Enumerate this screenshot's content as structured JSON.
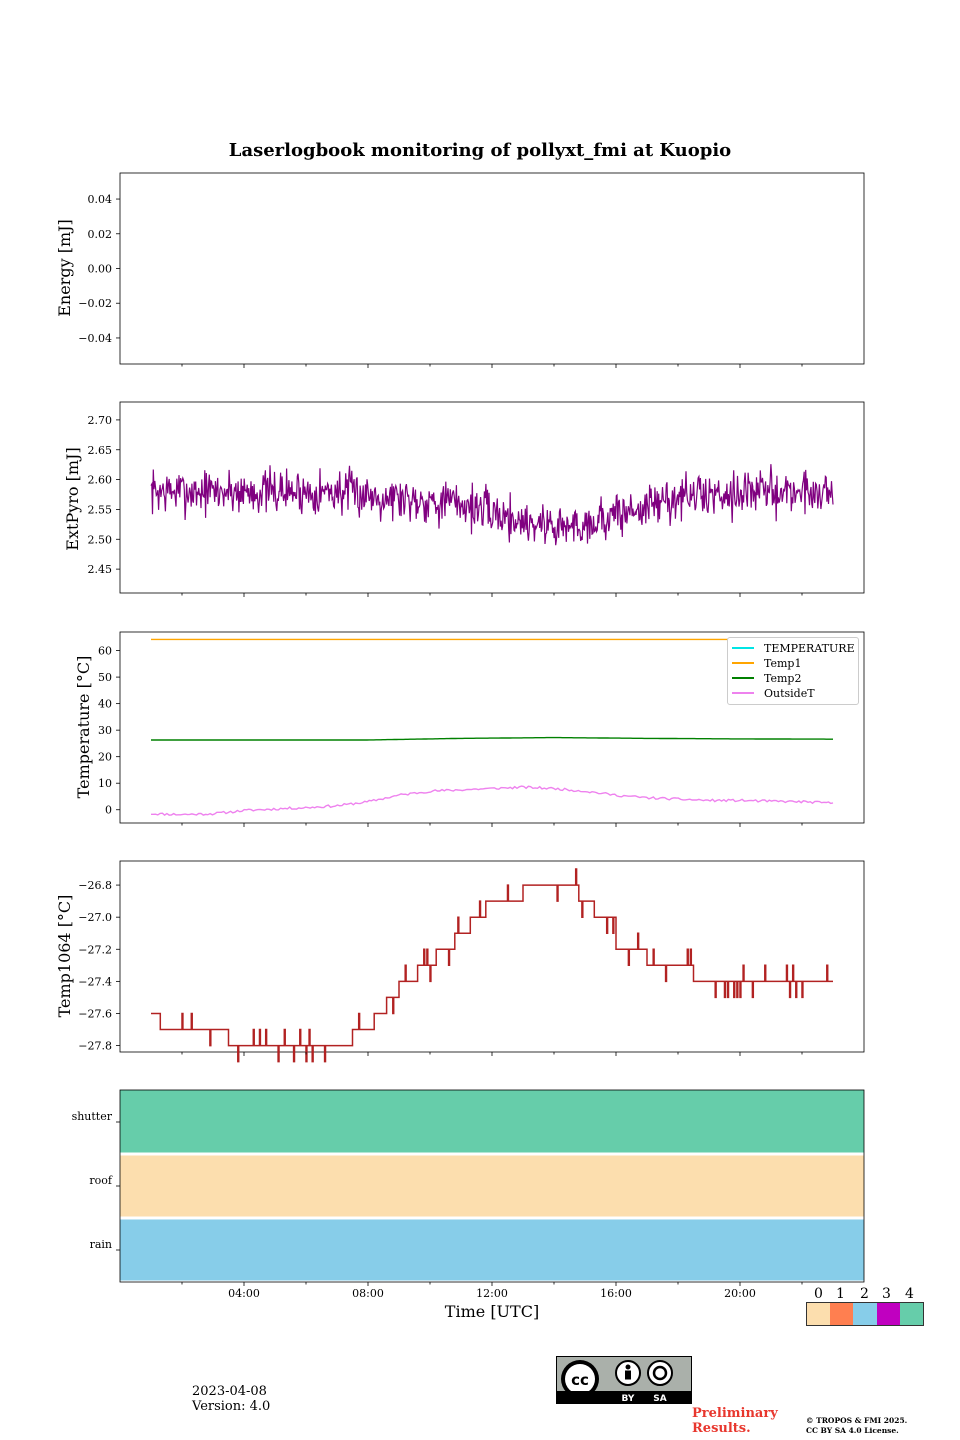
{
  "page": {
    "title": "Laserlogbook monitoring of pollyxt_fmi at Kuopio",
    "date": "2023-04-08",
    "version": "Version: 4.0",
    "preliminary_line1": "Preliminary",
    "preliminary_line2": "Results.",
    "copyright_line1": "© TROPOS & FMI 2025.",
    "copyright_line2": "CC BY SA 4.0 License.",
    "cc_by": "BY",
    "cc_sa": "SA",
    "cc_logo": "cc"
  },
  "chart_data": [
    {
      "type": "line",
      "name": "energy",
      "ylabel": "Energy [mJ]",
      "ylim": [
        -0.055,
        0.055
      ],
      "yticks": [
        -0.04,
        -0.02,
        0.0,
        0.02,
        0.04
      ],
      "ytick_labels": [
        "−0.04",
        "−0.02",
        "0.00",
        "0.02",
        "0.04"
      ],
      "series": []
    },
    {
      "type": "line",
      "name": "extpyro",
      "ylabel": "ExtPyro [mJ]",
      "ylim": [
        2.41,
        2.73
      ],
      "yticks": [
        2.45,
        2.5,
        2.55,
        2.6,
        2.65,
        2.7
      ],
      "ytick_labels": [
        "2.45",
        "2.50",
        "2.55",
        "2.60",
        "2.65",
        "2.70"
      ],
      "color": "#800080",
      "series": [
        {
          "name": "ExtPyro",
          "noise_amp": 0.04,
          "x": [
            1.0,
            3.0,
            5.0,
            7.0,
            9.0,
            11.0,
            13.0,
            14.5,
            16.0,
            18.0,
            20.0,
            22.0,
            23.0
          ],
          "y": [
            2.58,
            2.58,
            2.58,
            2.58,
            2.57,
            2.56,
            2.53,
            2.52,
            2.54,
            2.57,
            2.58,
            2.58,
            2.58
          ]
        }
      ]
    },
    {
      "type": "line",
      "name": "temperature",
      "ylabel": "Temperature [°C]",
      "ylim": [
        -5,
        67
      ],
      "yticks": [
        0,
        10,
        20,
        30,
        40,
        50,
        60
      ],
      "ytick_labels": [
        "0",
        "10",
        "20",
        "30",
        "40",
        "50",
        "60"
      ],
      "series": [
        {
          "name": "TEMPERATURE",
          "color": "#00e5e5",
          "x": [],
          "y": []
        },
        {
          "name": "Temp1",
          "color": "#ffa500",
          "x": [
            1,
            23
          ],
          "y": [
            64.2,
            64.2
          ]
        },
        {
          "name": "Temp2",
          "color": "#008000",
          "x": [
            1,
            8,
            11,
            14,
            17,
            20,
            23
          ],
          "y": [
            26.3,
            26.3,
            26.9,
            27.2,
            26.9,
            26.7,
            26.6
          ]
        },
        {
          "name": "OutsideT",
          "color": "#ee82ee",
          "x": [
            1,
            2,
            3,
            4,
            5,
            6,
            7,
            8,
            9,
            10,
            11,
            12,
            13,
            14,
            15,
            16,
            17,
            18,
            19,
            20,
            21,
            22,
            23
          ],
          "y": [
            -1.5,
            -1.8,
            -1.5,
            -0.3,
            0.3,
            0.8,
            1.5,
            3.0,
            5.5,
            7.0,
            7.5,
            8.0,
            8.5,
            8.0,
            7.0,
            5.5,
            4.5,
            4.0,
            3.5,
            3.5,
            3.2,
            3.0,
            2.5
          ]
        }
      ]
    },
    {
      "type": "line",
      "name": "temp1064",
      "ylabel": "Temp1064 [°C]",
      "ylim": [
        -27.84,
        -26.65
      ],
      "yticks": [
        -27.8,
        -27.6,
        -27.4,
        -27.2,
        -27.0,
        -26.8
      ],
      "ytick_labels": [
        "−27.8",
        "−27.6",
        "−27.4",
        "−27.2",
        "−27.0",
        "−26.8"
      ],
      "color": "#b22222",
      "series": [
        {
          "name": "Temp1064",
          "x": [
            1.0,
            1.3,
            3.5,
            7.5,
            8.2,
            8.6,
            9.0,
            9.6,
            10.2,
            10.8,
            11.3,
            11.8,
            12.3,
            13.0,
            14.2,
            14.8,
            15.3,
            16.0,
            17.0,
            18.5,
            21.0,
            23.0
          ],
          "y": [
            -27.6,
            -27.7,
            -27.8,
            -27.7,
            -27.6,
            -27.5,
            -27.4,
            -27.3,
            -27.2,
            -27.1,
            -27.0,
            -26.9,
            -26.9,
            -26.8,
            -26.8,
            -26.9,
            -27.0,
            -27.2,
            -27.3,
            -27.4,
            -27.4,
            -27.4
          ]
        }
      ]
    },
    {
      "type": "heatmap",
      "name": "flags",
      "rows": [
        "shutter",
        "roof",
        "rain"
      ],
      "row_values": [
        4,
        0,
        2
      ],
      "xlabel": "Time [UTC]",
      "xlim": [
        0,
        24
      ],
      "xticks": [
        4,
        8,
        12,
        16,
        20
      ],
      "xtick_labels": [
        "04:00",
        "08:00",
        "12:00",
        "16:00",
        "20:00"
      ],
      "colorbar": {
        "labels": [
          "0",
          "1",
          "2",
          "3",
          "4"
        ],
        "colors": [
          "#fcdeae",
          "#ff7f50",
          "#87cde9",
          "#c000c0",
          "#66cdaa"
        ]
      }
    }
  ]
}
